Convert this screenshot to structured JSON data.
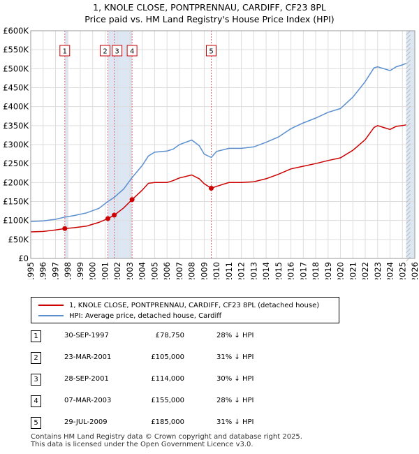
{
  "chart_data": {
    "type": "line",
    "title": "1, KNOLE CLOSE, PONTPRENNAU, CARDIFF, CF23 8PL",
    "subtitle": "Price paid vs. HM Land Registry's House Price Index (HPI)",
    "xlim": [
      1995,
      2026
    ],
    "ylim": [
      0,
      600000
    ],
    "x_ticks": [
      1995,
      1996,
      1997,
      1998,
      1999,
      2000,
      2001,
      2002,
      2003,
      2004,
      2005,
      2006,
      2007,
      2008,
      2009,
      2010,
      2011,
      2012,
      2013,
      2014,
      2015,
      2016,
      2017,
      2018,
      2019,
      2020,
      2021,
      2022,
      2023,
      2024,
      2025,
      2026
    ],
    "y_ticks": [
      {
        "value": 0,
        "label": "£0"
      },
      {
        "value": 50000,
        "label": "£50K"
      },
      {
        "value": 100000,
        "label": "£100K"
      },
      {
        "value": 150000,
        "label": "£150K"
      },
      {
        "value": 200000,
        "label": "£200K"
      },
      {
        "value": 250000,
        "label": "£250K"
      },
      {
        "value": 300000,
        "label": "£300K"
      },
      {
        "value": 350000,
        "label": "£350K"
      },
      {
        "value": 400000,
        "label": "£400K"
      },
      {
        "value": 450000,
        "label": "£450K"
      },
      {
        "value": 500000,
        "label": "£500K"
      },
      {
        "value": 550000,
        "label": "£550K"
      },
      {
        "value": 600000,
        "label": "£600K"
      }
    ],
    "series": [
      {
        "name": "1, KNOLE CLOSE, PONTPRENNAU, CARDIFF, CF23 8PL (detached house)",
        "color": "#cc0000",
        "points": [
          [
            1995.0,
            70000
          ],
          [
            1996.0,
            71000
          ],
          [
            1997.0,
            75000
          ],
          [
            1997.75,
            78750
          ],
          [
            1998.5,
            81000
          ],
          [
            1999.5,
            85000
          ],
          [
            2000.5,
            95000
          ],
          [
            2001.23,
            105000
          ],
          [
            2001.74,
            114000
          ],
          [
            2002.5,
            133000
          ],
          [
            2003.18,
            155000
          ],
          [
            2004.0,
            180000
          ],
          [
            2004.5,
            198000
          ],
          [
            2005.0,
            200000
          ],
          [
            2006.0,
            200000
          ],
          [
            2006.5,
            205000
          ],
          [
            2007.0,
            212000
          ],
          [
            2008.0,
            220000
          ],
          [
            2008.6,
            210000
          ],
          [
            2009.0,
            197000
          ],
          [
            2009.57,
            185000
          ],
          [
            2010.0,
            190000
          ],
          [
            2011.0,
            200000
          ],
          [
            2012.0,
            200000
          ],
          [
            2013.0,
            202000
          ],
          [
            2014.0,
            210000
          ],
          [
            2015.0,
            222000
          ],
          [
            2016.0,
            236000
          ],
          [
            2017.0,
            243000
          ],
          [
            2018.0,
            250000
          ],
          [
            2019.0,
            258000
          ],
          [
            2020.0,
            265000
          ],
          [
            2021.0,
            285000
          ],
          [
            2022.0,
            313000
          ],
          [
            2022.7,
            345000
          ],
          [
            2023.0,
            350000
          ],
          [
            2023.5,
            345000
          ],
          [
            2024.0,
            340000
          ],
          [
            2024.5,
            348000
          ],
          [
            2025.0,
            350000
          ],
          [
            2025.3,
            352000
          ]
        ]
      },
      {
        "name": "HPI: Average price, detached house, Cardiff",
        "color": "#5b8fcf",
        "points": [
          [
            1995.0,
            97000
          ],
          [
            1996.0,
            99000
          ],
          [
            1997.0,
            103000
          ],
          [
            1997.75,
            109000
          ],
          [
            1998.5,
            113000
          ],
          [
            1999.5,
            120000
          ],
          [
            2000.5,
            132000
          ],
          [
            2001.23,
            150000
          ],
          [
            2001.74,
            161000
          ],
          [
            2002.5,
            183000
          ],
          [
            2003.18,
            213000
          ],
          [
            2004.0,
            245000
          ],
          [
            2004.5,
            270000
          ],
          [
            2005.0,
            280000
          ],
          [
            2006.0,
            283000
          ],
          [
            2006.5,
            288000
          ],
          [
            2007.0,
            300000
          ],
          [
            2008.0,
            312000
          ],
          [
            2008.6,
            297000
          ],
          [
            2009.0,
            275000
          ],
          [
            2009.57,
            266000
          ],
          [
            2010.0,
            282000
          ],
          [
            2011.0,
            290000
          ],
          [
            2012.0,
            290000
          ],
          [
            2013.0,
            294000
          ],
          [
            2014.0,
            306000
          ],
          [
            2015.0,
            320000
          ],
          [
            2016.0,
            342000
          ],
          [
            2017.0,
            357000
          ],
          [
            2018.0,
            370000
          ],
          [
            2019.0,
            385000
          ],
          [
            2020.0,
            395000
          ],
          [
            2021.0,
            425000
          ],
          [
            2022.0,
            466000
          ],
          [
            2022.7,
            502000
          ],
          [
            2023.0,
            505000
          ],
          [
            2023.5,
            500000
          ],
          [
            2024.0,
            495000
          ],
          [
            2024.5,
            505000
          ],
          [
            2025.0,
            510000
          ],
          [
            2025.3,
            514000
          ]
        ]
      }
    ],
    "sales": [
      {
        "num": "1",
        "x": 1997.75,
        "price": 78750
      },
      {
        "num": "2",
        "x": 2001.23,
        "price": 105000
      },
      {
        "num": "3",
        "x": 2001.74,
        "price": 114000
      },
      {
        "num": "4",
        "x": 2003.18,
        "price": 155000
      },
      {
        "num": "5",
        "x": 2009.57,
        "price": 185000
      }
    ],
    "shaded_ranges": [
      [
        1997.75,
        1998.0
      ],
      [
        2001.23,
        2003.18
      ],
      [
        2025.3,
        2026.0
      ]
    ]
  },
  "header": {
    "title": "1, KNOLE CLOSE, PONTPRENNAU, CARDIFF, CF23 8PL",
    "subtitle": "Price paid vs. HM Land Registry's House Price Index (HPI)"
  },
  "legend": {
    "property_label": "1, KNOLE CLOSE, PONTPRENNAU, CARDIFF, CF23 8PL (detached house)",
    "hpi_label": "HPI: Average price, detached house, Cardiff",
    "property_color": "#cc0000",
    "hpi_color": "#5b8fcf"
  },
  "sales_table": [
    {
      "num": "1",
      "date": "30-SEP-1997",
      "price": "£78,750",
      "hpi": "28% ↓ HPI"
    },
    {
      "num": "2",
      "date": "23-MAR-2001",
      "price": "£105,000",
      "hpi": "31% ↓ HPI"
    },
    {
      "num": "3",
      "date": "28-SEP-2001",
      "price": "£114,000",
      "hpi": "30% ↓ HPI"
    },
    {
      "num": "4",
      "date": "07-MAR-2003",
      "price": "£155,000",
      "hpi": "28% ↓ HPI"
    },
    {
      "num": "5",
      "date": "29-JUL-2009",
      "price": "£185,000",
      "hpi": "31% ↓ HPI"
    }
  ],
  "footer": {
    "line1": "Contains HM Land Registry data © Crown copyright and database right 2025.",
    "line2": "This data is licensed under the Open Government Licence v3.0."
  }
}
